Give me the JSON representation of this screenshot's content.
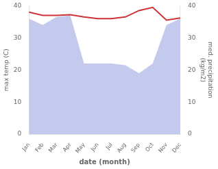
{
  "chart_data": {
    "type": "line",
    "categories": [
      "Jan",
      "Feb",
      "Mar",
      "Apr",
      "May",
      "Jun",
      "Jul",
      "Aug",
      "Sep",
      "Oct",
      "Nov",
      "Dec"
    ],
    "series": [
      {
        "type": "area",
        "color": "#b0b8e8",
        "axis": "y2",
        "values": [
          36.0,
          34.0,
          36.5,
          37.0,
          22.0,
          22.0,
          22.0,
          21.5,
          19.0,
          22.0,
          34.0,
          36.0
        ]
      },
      {
        "type": "line",
        "color": "#cc3333",
        "values": [
          38.0,
          37.0,
          37.0,
          37.2,
          36.5,
          36.0,
          36.0,
          36.5,
          38.5,
          39.5,
          35.5,
          36.2
        ]
      }
    ],
    "xlabel": "date (month)",
    "ylabel": "max temp (C)",
    "y2label": "med. precipitation\n(kg/m2)",
    "ylim": [
      0,
      40
    ],
    "yticks": [
      0,
      10,
      20,
      30,
      40
    ],
    "y2lim": [
      0,
      40
    ],
    "y2ticks": [
      0,
      10,
      20,
      30,
      40
    ],
    "grid": false
  }
}
